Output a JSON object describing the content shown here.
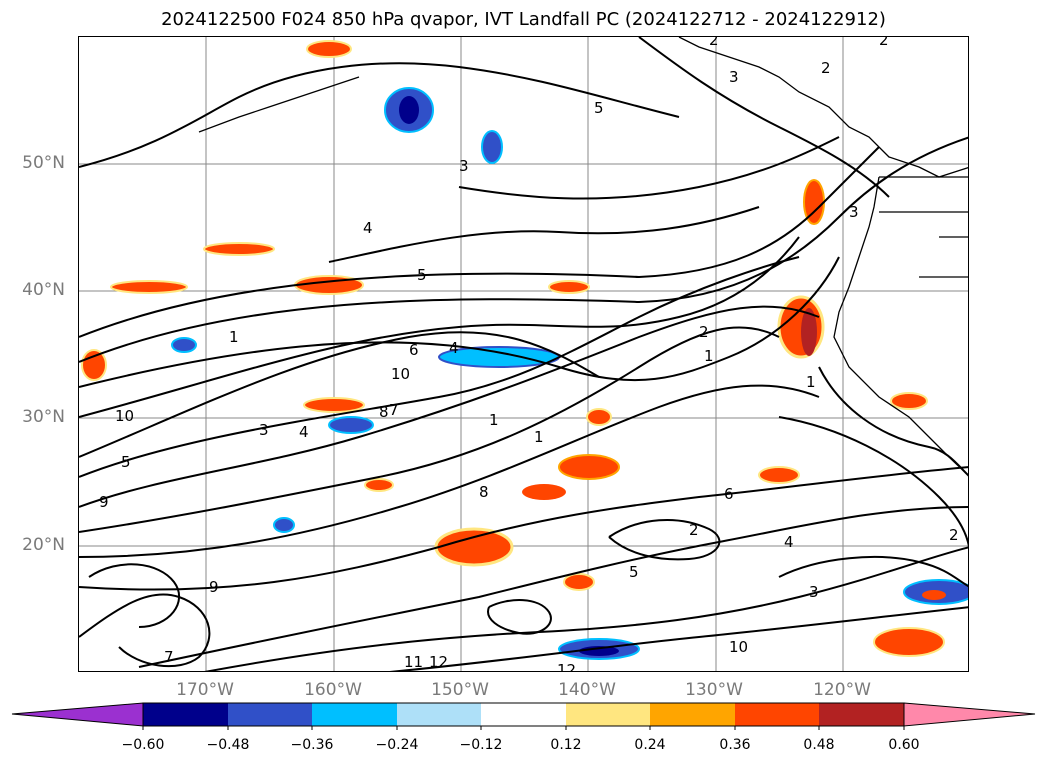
{
  "title": "2024122500 F024 850 hPa qvapor, IVT Landfall PC (2024122712 - 2024122912)",
  "map": {
    "lat_labels": [
      {
        "text": "50°N",
        "lat": 50
      },
      {
        "text": "40°N",
        "lat": 40
      },
      {
        "text": "30°N",
        "lat": 30
      },
      {
        "text": "20°N",
        "lat": 20
      }
    ],
    "lon_labels": [
      {
        "text": "170°W",
        "lon": -170
      },
      {
        "text": "160°W",
        "lon": -160
      },
      {
        "text": "150°W",
        "lon": -150
      },
      {
        "text": "140°W",
        "lon": -140
      },
      {
        "text": "130°W",
        "lon": -130
      },
      {
        "text": "120°W",
        "lon": -120
      }
    ],
    "extent": {
      "lon_min": -180,
      "lon_max": -110,
      "lat_min": 10,
      "lat_max": 60
    },
    "contour_labels": [
      "2",
      "2",
      "2",
      "3",
      "5",
      "3",
      "4",
      "5",
      "1",
      "10",
      "6",
      "4",
      "8",
      "7",
      "3",
      "1",
      "10",
      "9",
      "5",
      "2",
      "6",
      "4",
      "8",
      "1",
      "2",
      "3",
      "10",
      "12",
      "11",
      "12",
      "7",
      "5",
      "9",
      "1",
      "4",
      "2",
      "1",
      "3"
    ],
    "field_colors": {
      "land_outline": "#000000",
      "contour": "#000000",
      "grid": "#888888"
    }
  },
  "colorbar": {
    "ticks": [
      "−0.60",
      "−0.48",
      "−0.36",
      "−0.24",
      "−0.12",
      "0.12",
      "0.24",
      "0.36",
      "0.48",
      "0.60"
    ],
    "colors": [
      "#9b30d0",
      "#00008b",
      "#3050c8",
      "#00bfff",
      "#aee0f8",
      "#ffffff",
      "#ffe680",
      "#ffa500",
      "#ff4500",
      "#b22222",
      "#ff88aa"
    ]
  }
}
